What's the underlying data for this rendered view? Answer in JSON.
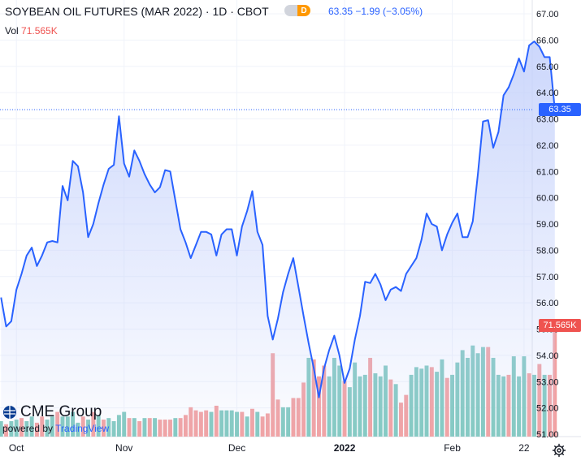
{
  "header": {
    "title": "SOYBEAN OIL FUTURES (MAR 2022)",
    "interval": "1D",
    "exchange": "CBOT",
    "badge": "D",
    "quote": "63.35  −1.99 (−3.05%)",
    "vol_label": "Vol",
    "vol_value": "71.565K"
  },
  "tags": {
    "last_price": "63.35",
    "last_volume": "71.565K"
  },
  "logo": {
    "brand": "CME Group",
    "powered_by": "powered by",
    "provider": "TradingView"
  },
  "icons": {
    "settings": "gear-icon",
    "brand_mark": "cme-globe-icon"
  },
  "colors": {
    "line": "#2962ff",
    "area_top": "#c3d0fb",
    "volume_up": "#82c9c0",
    "volume_down": "#f2a1a1",
    "price_tag": "#2962ff",
    "volume_tag": "#ef5350",
    "grid": "#f0f3fa",
    "axis_text": "#131722"
  },
  "chart_data": {
    "type": "line",
    "title": "SOYBEAN OIL FUTURES (MAR 2022)",
    "grid": true,
    "ylim": [
      51,
      67.3
    ],
    "y_ticks": [
      "67.00",
      "66.00",
      "65.00",
      "64.00",
      "63.00",
      "62.00",
      "61.00",
      "60.00",
      "59.00",
      "58.00",
      "57.00",
      "56.00",
      "55.00",
      "54.00",
      "53.00",
      "52.00",
      "51.00"
    ],
    "x_ticks": [
      {
        "label": "Oct",
        "day": 3
      },
      {
        "label": "Nov",
        "day": 24
      },
      {
        "label": "Dec",
        "day": 46
      },
      {
        "label": "2022",
        "day": 67
      },
      {
        "label": "Feb",
        "day": 88
      },
      {
        "label": "22",
        "day": 102
      }
    ],
    "x_range": [
      -0.2,
      103.6
    ],
    "series": [
      {
        "values": [
          56.2,
          55.1,
          55.3,
          56.5,
          57.1,
          57.8,
          58.1,
          57.4,
          57.8,
          58.3,
          58.35,
          58.3,
          60.45,
          59.9,
          61.4,
          61.2,
          60.2,
          58.5,
          59.0,
          59.8,
          60.5,
          61.1,
          61.25,
          63.1,
          61.3,
          60.8,
          61.8,
          61.4,
          60.9,
          60.5,
          60.2,
          60.4,
          61.05,
          61.0,
          59.9,
          58.8,
          58.3,
          57.7,
          58.2,
          58.7,
          58.7,
          58.6,
          57.8,
          58.6,
          58.8,
          58.8,
          57.8,
          58.9,
          59.5,
          60.25,
          58.7,
          58.2,
          55.5,
          54.6,
          55.4,
          56.4,
          57.1,
          57.7,
          56.6,
          55.5,
          54.45,
          53.5,
          52.4,
          53.5,
          54.2,
          54.75,
          54.0,
          52.95,
          53.5,
          54.6,
          55.5,
          56.8,
          56.75,
          57.1,
          56.7,
          56.1,
          56.5,
          56.6,
          56.45,
          57.1,
          57.4,
          57.7,
          58.4,
          59.4,
          59.0,
          58.9,
          58.0,
          58.6,
          59.05,
          59.4,
          58.5,
          58.5,
          59.1,
          60.9,
          62.9,
          62.95,
          61.9,
          62.5,
          63.9,
          64.2,
          64.7,
          65.3,
          64.8,
          65.8,
          65.95,
          65.75,
          65.35,
          65.35,
          63.35
        ]
      }
    ],
    "volume": {
      "unit": "K",
      "last": "71.565K",
      "values": [
        [
          10,
          1
        ],
        [
          8,
          0
        ],
        [
          10,
          1
        ],
        [
          11,
          1
        ],
        [
          12,
          0
        ],
        [
          10,
          1
        ],
        [
          13,
          1
        ],
        [
          9,
          0
        ],
        [
          13,
          0
        ],
        [
          11,
          1
        ],
        [
          13,
          1
        ],
        [
          16,
          0
        ],
        [
          13,
          1
        ],
        [
          13,
          1
        ],
        [
          16,
          1
        ],
        [
          9,
          1
        ],
        [
          13,
          0
        ],
        [
          11,
          1
        ],
        [
          16,
          0
        ],
        [
          14,
          1
        ],
        [
          11,
          0
        ],
        [
          12,
          1
        ],
        [
          10,
          1
        ],
        [
          14,
          1
        ],
        [
          16,
          1
        ],
        [
          12,
          0
        ],
        [
          12,
          1
        ],
        [
          10,
          0
        ],
        [
          12,
          1
        ],
        [
          12,
          0
        ],
        [
          12,
          1
        ],
        [
          11,
          0
        ],
        [
          11,
          0
        ],
        [
          11,
          0
        ],
        [
          12,
          1
        ],
        [
          12,
          0
        ],
        [
          14,
          0
        ],
        [
          19,
          0
        ],
        [
          17,
          0
        ],
        [
          16,
          0
        ],
        [
          17,
          0
        ],
        [
          16,
          1
        ],
        [
          20,
          0
        ],
        [
          17,
          1
        ],
        [
          17,
          1
        ],
        [
          17,
          1
        ],
        [
          16,
          1
        ],
        [
          16,
          0
        ],
        [
          13,
          1
        ],
        [
          18,
          0
        ],
        [
          16,
          1
        ],
        [
          13,
          0
        ],
        [
          15,
          0
        ],
        [
          54,
          0
        ],
        [
          24,
          0
        ],
        [
          19,
          1
        ],
        [
          19,
          1
        ],
        [
          25,
          0
        ],
        [
          25,
          0
        ],
        [
          35,
          0
        ],
        [
          51,
          1
        ],
        [
          50,
          0
        ],
        [
          39,
          0
        ],
        [
          46,
          0
        ],
        [
          39,
          1
        ],
        [
          51,
          1
        ],
        [
          46,
          1
        ],
        [
          36,
          0
        ],
        [
          32,
          1
        ],
        [
          48,
          1
        ],
        [
          39,
          1
        ],
        [
          40,
          1
        ],
        [
          51,
          0
        ],
        [
          41,
          1
        ],
        [
          39,
          1
        ],
        [
          46,
          1
        ],
        [
          37,
          0
        ],
        [
          34,
          1
        ],
        [
          22,
          0
        ],
        [
          27,
          0
        ],
        [
          40,
          1
        ],
        [
          45,
          1
        ],
        [
          44,
          1
        ],
        [
          46,
          1
        ],
        [
          45,
          0
        ],
        [
          42,
          1
        ],
        [
          50,
          1
        ],
        [
          38,
          0
        ],
        [
          40,
          1
        ],
        [
          48,
          1
        ],
        [
          56,
          1
        ],
        [
          51,
          1
        ],
        [
          59,
          1
        ],
        [
          54,
          1
        ],
        [
          58,
          1
        ],
        [
          58,
          0
        ],
        [
          51,
          1
        ],
        [
          40,
          1
        ],
        [
          39,
          1
        ],
        [
          40,
          0
        ],
        [
          52,
          1
        ],
        [
          39,
          1
        ],
        [
          52,
          1
        ],
        [
          41,
          0
        ],
        [
          40,
          1
        ],
        [
          47,
          0
        ],
        [
          40,
          1
        ],
        [
          40,
          0
        ],
        [
          72,
          0
        ]
      ]
    }
  }
}
